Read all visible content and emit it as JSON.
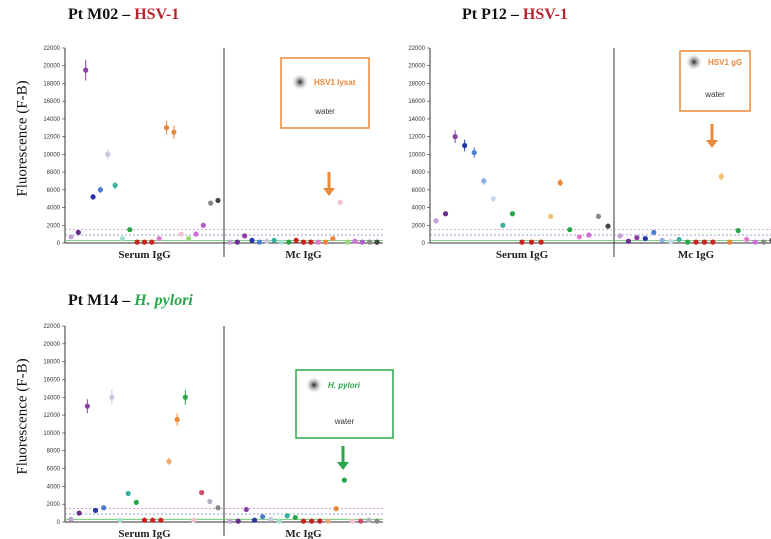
{
  "panels": [
    {
      "title_prefix": "Pt  M02 – ",
      "title_pathogen": "HSV-1",
      "ylabel": "Fluorescence (F-B)",
      "inset": {
        "label": "HSV1 lysat",
        "water": "water",
        "arrow_color": "#e8883a"
      }
    },
    {
      "title_prefix": "Pt  P12 – ",
      "title_pathogen": "HSV-1",
      "ylabel": "Fluorescence (F-B)",
      "inset": {
        "label": "HSV1 gG",
        "water": "water",
        "arrow_color": "#e8883a"
      }
    },
    {
      "title_prefix": "Pt  M14 – ",
      "title_pathogen": "H. pylori",
      "ylabel": "Fluorescence (F-B)",
      "inset": {
        "label": "H. pylori",
        "water": "water",
        "arrow_color": "#2aa64a"
      }
    }
  ],
  "chart_data": [
    {
      "type": "scatter",
      "title": "Pt M02 – HSV-1",
      "ylabel": "Fluorescence (F-B)",
      "ylim": [
        0,
        22000
      ],
      "yticks": [
        "0",
        "2000",
        "4000",
        "6000",
        "8000",
        "10000",
        "12000",
        "14000",
        "16000",
        "18000",
        "20000",
        "22000"
      ],
      "groups": [
        "Serum IgG",
        "Mc IgG"
      ],
      "series": [
        {
          "values": [
            700,
            1200,
            19500,
            5200,
            6000,
            10000,
            6500,
            500,
            1500,
            100,
            100,
            100,
            500,
            13000,
            12500,
            1000,
            500,
            1000,
            2000,
            4500,
            4800
          ],
          "colors": [
            "#c8a0d8",
            "#6a2c91",
            "#8a3fa6",
            "#2636a8",
            "#4a7fd4",
            "#c8c8e0",
            "#3ab0a0",
            "#a0e0d0",
            "#2aa64a",
            "#cc2222",
            "#cc2222",
            "#cc2222",
            "#e07ad0",
            "#e8883a",
            "#e8883a",
            "#f2c2d0",
            "#9bd880",
            "#d070d8",
            "#b060c8",
            "#888888",
            "#444444"
          ]
        },
        {
          "values": [
            100,
            100,
            800,
            300,
            100,
            200,
            300,
            100,
            100,
            300,
            100,
            100,
            100,
            100,
            500,
            4600,
            100,
            200,
            100,
            100,
            100
          ],
          "colors": [
            "#c8a0d8",
            "#6a2c91",
            "#8a3fa6",
            "#2636a8",
            "#4a7fd4",
            "#c8c8e0",
            "#3ab0a0",
            "#a0e0d0",
            "#2aa64a",
            "#cc2222",
            "#cc2222",
            "#cc2222",
            "#e07ad0",
            "#e8883a",
            "#e8883a",
            "#f2c2d0",
            "#9bd880",
            "#d070d8",
            "#b060c8",
            "#888888",
            "#444444"
          ]
        }
      ]
    },
    {
      "type": "scatter",
      "title": "Pt P12 – HSV-1",
      "ylabel": "Fluorescence (F-B)",
      "ylim": [
        0,
        22000
      ],
      "yticks": [
        "0",
        "2000",
        "4000",
        "6000",
        "8000",
        "10000",
        "12000",
        "14000",
        "16000",
        "18000",
        "20000",
        "22000"
      ],
      "groups": [
        "Serum IgG",
        "Mc IgG"
      ],
      "series": [
        {
          "values": [
            2500,
            3300,
            12000,
            11000,
            10200,
            7000,
            5000,
            2000,
            3300,
            100,
            100,
            100,
            3000,
            6800,
            1500,
            700,
            900,
            3000,
            1900
          ],
          "colors": [
            "#c8a0d8",
            "#6a2c91",
            "#8a3fa6",
            "#2636a8",
            "#4a7fd4",
            "#8ab0e8",
            "#c8d8f0",
            "#3ab0a0",
            "#2aa64a",
            "#cc2222",
            "#cc2222",
            "#cc2222",
            "#f2c070",
            "#e8883a",
            "#2aa64a",
            "#e07ad0",
            "#d070d8",
            "#888888",
            "#444444"
          ]
        },
        {
          "values": [
            800,
            200,
            600,
            500,
            1200,
            300,
            200,
            400,
            100,
            100,
            100,
            100,
            7500,
            100,
            1400,
            400,
            100,
            100,
            300
          ],
          "colors": [
            "#c8a0d8",
            "#6a2c91",
            "#8a3fa6",
            "#2636a8",
            "#4a7fd4",
            "#8ab0e8",
            "#c8d8f0",
            "#3ab0a0",
            "#2aa64a",
            "#cc2222",
            "#cc2222",
            "#cc2222",
            "#f2c070",
            "#e8883a",
            "#2aa64a",
            "#e07ad0",
            "#d070d8",
            "#888888",
            "#444444"
          ]
        }
      ]
    },
    {
      "type": "scatter",
      "title": "Pt M14 – H. pylori",
      "ylabel": "Fluorescence (F-B)",
      "ylim": [
        0,
        22000
      ],
      "yticks": [
        "0",
        "2000",
        "4000",
        "6000",
        "8000",
        "10000",
        "12000",
        "14000",
        "16000",
        "18000",
        "20000",
        "22000"
      ],
      "groups": [
        "Serum IgG",
        "Mc IgG"
      ],
      "series": [
        {
          "values": [
            300,
            1000,
            13000,
            1300,
            1600,
            14000,
            200,
            3200,
            2200,
            200,
            200,
            200,
            6800,
            11500,
            14000,
            200,
            3300,
            2300,
            1600
          ],
          "colors": [
            "#c8a0d8",
            "#6a2c91",
            "#8a3fa6",
            "#2636a8",
            "#4a7fd4",
            "#c8c8e0",
            "#a0e0d0",
            "#3ab0a0",
            "#2aa64a",
            "#cc2222",
            "#cc2222",
            "#cc2222",
            "#e8a870",
            "#e8883a",
            "#2aa64a",
            "#f2c2d0",
            "#d0506a",
            "#b0b0c0",
            "#888888"
          ]
        },
        {
          "values": [
            100,
            100,
            1400,
            200,
            600,
            300,
            100,
            700,
            500,
            100,
            100,
            100,
            100,
            1500,
            4700,
            100,
            100,
            200,
            100
          ],
          "colors": [
            "#c8a0d8",
            "#6a2c91",
            "#8a3fa6",
            "#2636a8",
            "#4a7fd4",
            "#c8c8e0",
            "#a0e0d0",
            "#3ab0a0",
            "#2aa64a",
            "#cc2222",
            "#cc2222",
            "#cc2222",
            "#e8a870",
            "#e8883a",
            "#2aa64a",
            "#f2c2d0",
            "#d0506a",
            "#b0b0c0",
            "#888888"
          ]
        }
      ]
    }
  ]
}
